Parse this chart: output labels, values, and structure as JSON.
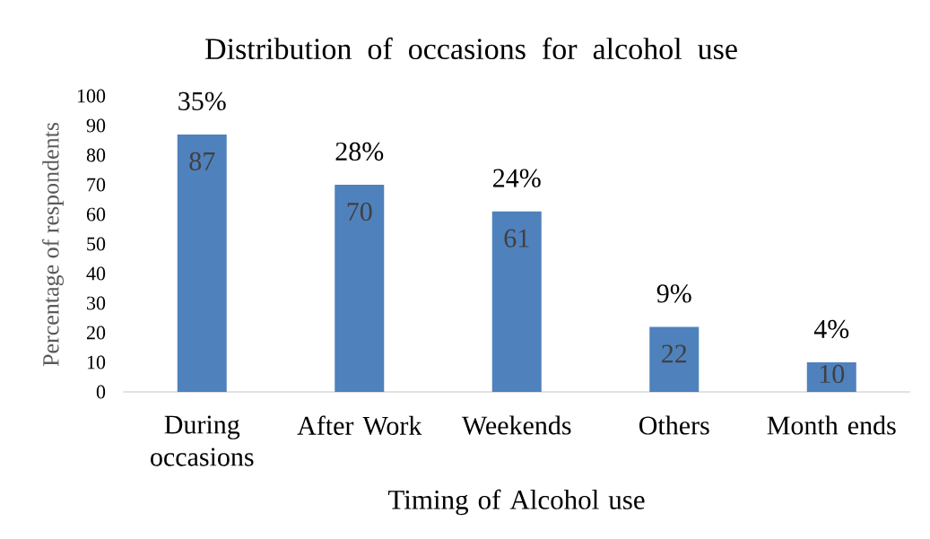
{
  "chart_data": {
    "type": "bar",
    "title": "Distribution of occasions for alcohol use",
    "xlabel": "Timing of Alcohol use",
    "ylabel": "Percentage of respondents",
    "categories": [
      "During occasions",
      "After Work",
      "Weekends",
      "Others",
      "Month ends"
    ],
    "values": [
      87,
      70,
      61,
      22,
      10
    ],
    "color": "#4f81bd",
    "ylim": [
      0,
      100
    ],
    "yticks": [
      0,
      10,
      20,
      30,
      40,
      50,
      60,
      70,
      80,
      90,
      100
    ],
    "data_labels": true,
    "annotations": [
      {
        "text": "35%",
        "x": "During occasions",
        "y": 87
      },
      {
        "text": "28%",
        "x": "After Work",
        "y": 70
      },
      {
        "text": "24%",
        "x": "Weekends",
        "y": 61
      },
      {
        "text": "9%",
        "x": "Others",
        "y": 22
      },
      {
        "text": "4%",
        "x": "Month ends",
        "y": 10
      }
    ]
  }
}
